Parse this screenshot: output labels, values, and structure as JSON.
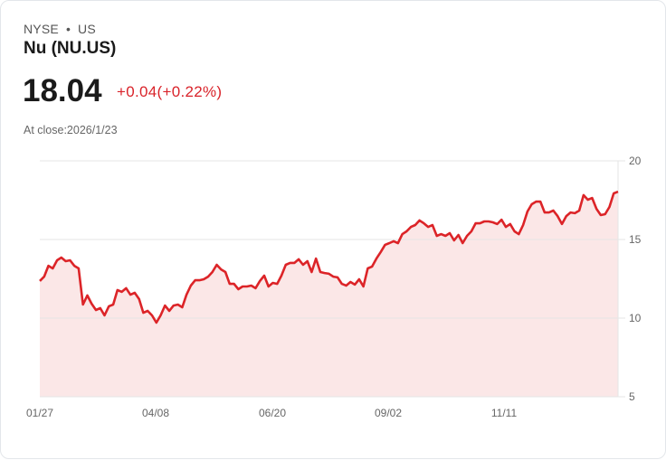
{
  "header": {
    "exchange": "NYSE",
    "separator": "•",
    "region": "US",
    "name": "Nu (NU.US)"
  },
  "quote": {
    "price": "18.04",
    "change": "+0.04(+0.22%)",
    "close_label": "At close:2026/1/23"
  },
  "colors": {
    "line": "#dc2428",
    "fill": "#fbe7e7",
    "grid": "#e6e6e6",
    "positive": "#d9232a"
  },
  "chart_data": {
    "type": "area",
    "title": "Nu (NU.US)",
    "xlabel": "",
    "ylabel": "",
    "ylim": [
      5,
      20
    ],
    "y_ticks": [
      20,
      15,
      10,
      5
    ],
    "y_axis_position": "right",
    "x_tick_labels": [
      "01/27",
      "04/08",
      "06/20",
      "09/02",
      "11/11"
    ],
    "grid": true,
    "values": [
      12.36,
      12.64,
      13.33,
      13.16,
      13.68,
      13.85,
      13.62,
      13.68,
      13.33,
      13.16,
      10.86,
      11.44,
      10.92,
      10.52,
      10.63,
      10.17,
      10.75,
      10.86,
      11.78,
      11.67,
      11.9,
      11.49,
      11.61,
      11.21,
      10.34,
      10.46,
      10.17,
      9.71,
      10.17,
      10.8,
      10.46,
      10.8,
      10.86,
      10.69,
      11.49,
      12.07,
      12.41,
      12.41,
      12.47,
      12.64,
      12.93,
      13.39,
      13.1,
      12.93,
      12.18,
      12.18,
      11.84,
      12.01,
      12.01,
      12.07,
      11.9,
      12.36,
      12.7,
      12.01,
      12.24,
      12.18,
      12.7,
      13.39,
      13.51,
      13.51,
      13.74,
      13.39,
      13.62,
      12.93,
      13.79,
      12.93,
      12.87,
      12.82,
      12.64,
      12.59,
      12.18,
      12.07,
      12.3,
      12.13,
      12.47,
      12.01,
      13.16,
      13.28,
      13.79,
      14.2,
      14.66,
      14.77,
      14.89,
      14.77,
      15.34,
      15.52,
      15.8,
      15.92,
      16.21,
      16.03,
      15.8,
      15.92,
      15.23,
      15.34,
      15.23,
      15.4,
      14.94,
      15.29,
      14.77,
      15.23,
      15.52,
      16.03,
      16.03,
      16.15,
      16.15,
      16.09,
      15.98,
      16.26,
      15.8,
      15.98,
      15.52,
      15.34,
      15.92,
      16.78,
      17.24,
      17.41,
      17.41,
      16.72,
      16.72,
      16.84,
      16.49,
      15.98,
      16.49,
      16.72,
      16.67,
      16.84,
      17.82,
      17.53,
      17.64,
      16.95,
      16.55,
      16.61,
      17.07,
      17.93,
      18.04
    ]
  }
}
